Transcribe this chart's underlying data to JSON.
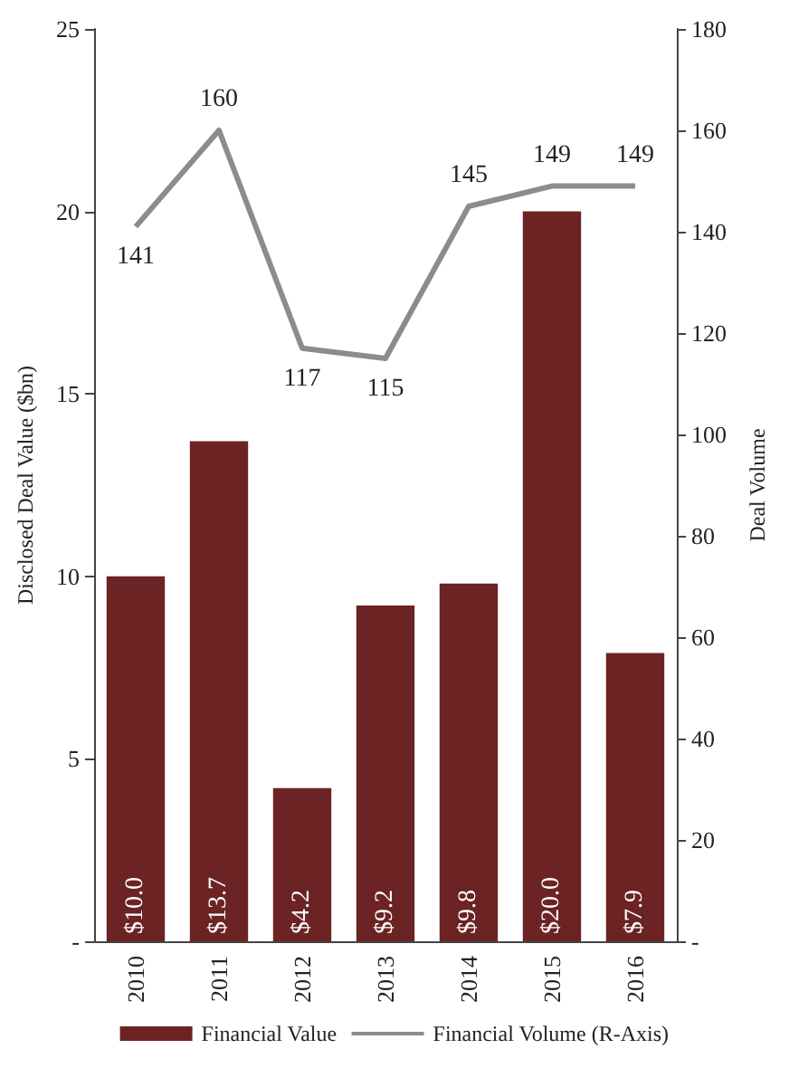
{
  "chart_data": {
    "type": "bar",
    "categories": [
      "2010",
      "2011",
      "2012",
      "2013",
      "2014",
      "2015",
      "2016"
    ],
    "ylabel": "Disclosed Deal Value ($bn)",
    "y2label": "Deal Volume",
    "ylim": [
      0,
      25
    ],
    "yticks": [
      {
        "value": 0,
        "label": "-"
      },
      5,
      10,
      15,
      20,
      25
    ],
    "y2lim": [
      0,
      180
    ],
    "y2ticks": [
      {
        "value": 0,
        "label": "-"
      },
      20,
      40,
      60,
      80,
      100,
      120,
      140,
      160,
      180
    ],
    "grid": false,
    "legend": "bottom",
    "series": [
      {
        "name": "Financial Value",
        "color": "#6b2324",
        "values": [
          10.0,
          13.7,
          4.2,
          9.2,
          9.8,
          20.0,
          7.9
        ],
        "value_labels": [
          "$10.0",
          "$13.7",
          "$4.2",
          "$9.2",
          "$9.8",
          "$20.0",
          "$7.9"
        ]
      },
      {
        "name": "Financial Volume (R-Axis)",
        "type": "line",
        "axis": "y2",
        "color": "#8c8c8c",
        "marker": "none",
        "values": [
          141,
          160,
          117,
          115,
          145,
          149,
          149
        ],
        "value_labels": [
          "141",
          "160",
          "117",
          "115",
          "145",
          "149",
          "149"
        ]
      }
    ]
  }
}
